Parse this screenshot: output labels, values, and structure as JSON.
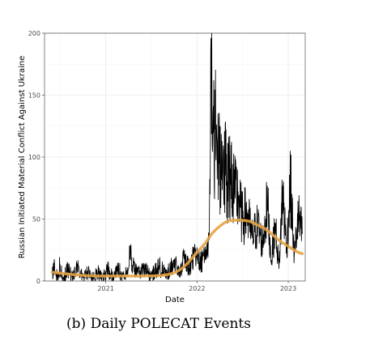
{
  "chart_data": {
    "type": "line",
    "title": "",
    "caption": "(b) Daily POLECAT Events",
    "xlabel": "Date",
    "ylabel": "Russian Initiated Material Conflict Against Ukraine",
    "xlim": [
      "2020-05-01",
      "2023-03-10"
    ],
    "ylim": [
      0,
      200
    ],
    "x_ticks": [
      {
        "value": "2021-01-01",
        "label": "2021"
      },
      {
        "value": "2022-01-01",
        "label": "2022"
      },
      {
        "value": "2023-01-01",
        "label": "2023"
      }
    ],
    "y_ticks": [
      0,
      50,
      100,
      150,
      200
    ],
    "grid": true,
    "series": [
      {
        "kind": "daily_counts",
        "color": "#000000",
        "x_start": "2020-06-01",
        "x_end": "2023-02-26",
        "points": [
          [
            "2020-06-01",
            6
          ],
          [
            "2020-06-10",
            14
          ],
          [
            "2020-06-20",
            3
          ],
          [
            "2020-07-01",
            12
          ],
          [
            "2020-07-15",
            2
          ],
          [
            "2020-08-01",
            9
          ],
          [
            "2020-08-20",
            4
          ],
          [
            "2020-09-10",
            11
          ],
          [
            "2020-10-01",
            3
          ],
          [
            "2020-10-20",
            8
          ],
          [
            "2020-11-10",
            2
          ],
          [
            "2020-12-01",
            7
          ],
          [
            "2020-12-20",
            3
          ],
          [
            "2021-01-10",
            9
          ],
          [
            "2021-02-01",
            2
          ],
          [
            "2021-02-20",
            10
          ],
          [
            "2021-03-10",
            4
          ],
          [
            "2021-03-25",
            8
          ],
          [
            "2021-04-10",
            24
          ],
          [
            "2021-04-20",
            12
          ],
          [
            "2021-05-10",
            6
          ],
          [
            "2021-06-01",
            10
          ],
          [
            "2021-07-01",
            4
          ],
          [
            "2021-08-01",
            12
          ],
          [
            "2021-09-01",
            5
          ],
          [
            "2021-10-01",
            16
          ],
          [
            "2021-10-20",
            6
          ],
          [
            "2021-11-10",
            18
          ],
          [
            "2021-12-01",
            10
          ],
          [
            "2021-12-20",
            22
          ],
          [
            "2022-01-10",
            15
          ],
          [
            "2022-02-01",
            18
          ],
          [
            "2022-02-15",
            30
          ],
          [
            "2022-02-22",
            70
          ],
          [
            "2022-02-24",
            122
          ],
          [
            "2022-02-26",
            196
          ],
          [
            "2022-03-02",
            140
          ],
          [
            "2022-03-10",
            110
          ],
          [
            "2022-03-20",
            126
          ],
          [
            "2022-04-01",
            95
          ],
          [
            "2022-04-15",
            103
          ],
          [
            "2022-05-01",
            80
          ],
          [
            "2022-05-15",
            90
          ],
          [
            "2022-06-01",
            70
          ],
          [
            "2022-06-15",
            68
          ],
          [
            "2022-07-01",
            50
          ],
          [
            "2022-07-20",
            55
          ],
          [
            "2022-08-10",
            35
          ],
          [
            "2022-09-01",
            45
          ],
          [
            "2022-09-20",
            30
          ],
          [
            "2022-10-10",
            62
          ],
          [
            "2022-10-25",
            16
          ],
          [
            "2022-11-10",
            45
          ],
          [
            "2022-11-25",
            10
          ],
          [
            "2022-12-10",
            74
          ],
          [
            "2022-12-25",
            25
          ],
          [
            "2023-01-10",
            78
          ],
          [
            "2023-01-25",
            20
          ],
          [
            "2023-02-10",
            52
          ],
          [
            "2023-02-26",
            38
          ]
        ]
      },
      {
        "kind": "smoothed_trend",
        "color": "#e5a444",
        "points": [
          [
            "2020-06-01",
            7
          ],
          [
            "2020-09-01",
            5
          ],
          [
            "2020-12-01",
            4
          ],
          [
            "2021-03-01",
            4
          ],
          [
            "2021-06-01",
            4
          ],
          [
            "2021-09-01",
            5
          ],
          [
            "2021-11-01",
            10
          ],
          [
            "2022-01-01",
            23
          ],
          [
            "2022-02-01",
            30
          ],
          [
            "2022-03-01",
            38
          ],
          [
            "2022-04-01",
            44
          ],
          [
            "2022-05-01",
            48
          ],
          [
            "2022-06-01",
            49
          ],
          [
            "2022-07-01",
            49
          ],
          [
            "2022-08-01",
            48
          ],
          [
            "2022-09-01",
            45
          ],
          [
            "2022-10-01",
            42
          ],
          [
            "2022-11-01",
            37
          ],
          [
            "2022-12-01",
            32
          ],
          [
            "2023-01-01",
            28
          ],
          [
            "2023-02-01",
            24
          ],
          [
            "2023-02-26",
            22
          ]
        ]
      }
    ]
  }
}
